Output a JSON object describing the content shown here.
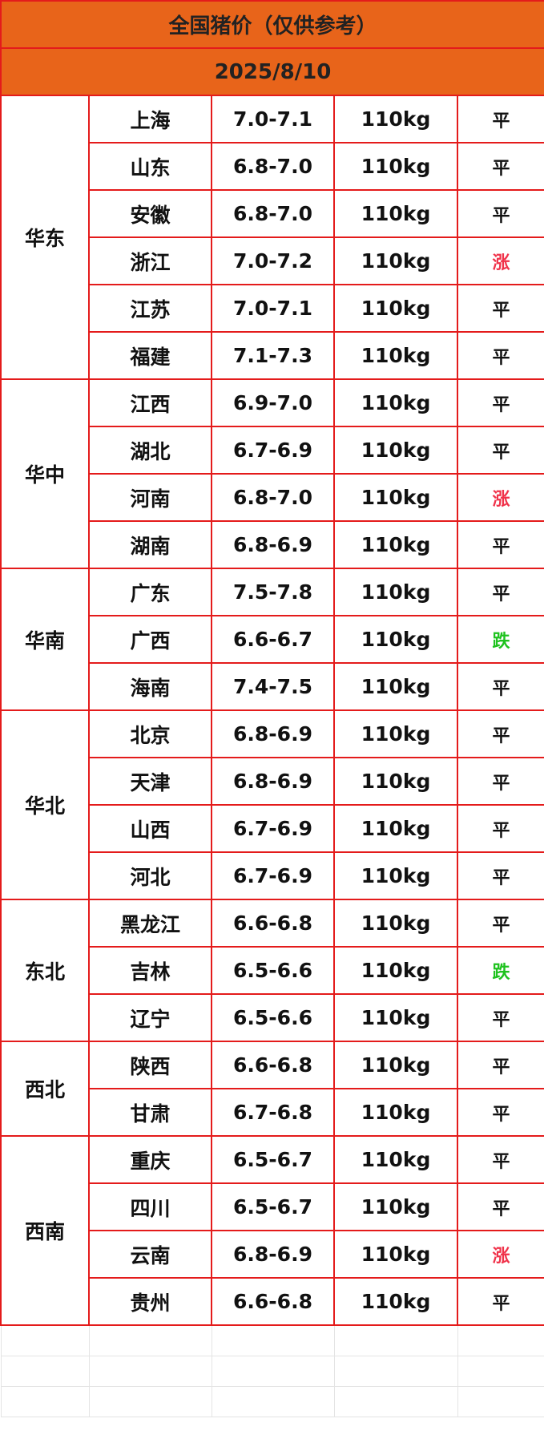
{
  "title": "全国猪价（仅供参考）",
  "date": "2025/8/10",
  "colors": {
    "header_bg": "#e8641a",
    "border": "#e41b1b",
    "rise": "#f0324a",
    "fall": "#1ec21e",
    "flat": "#111111"
  },
  "regions": [
    {
      "name": "华东",
      "rows": [
        {
          "province": "上海",
          "price": "7.0-7.1",
          "weight": "110kg",
          "trend": "平"
        },
        {
          "province": "山东",
          "price": "6.8-7.0",
          "weight": "110kg",
          "trend": "平"
        },
        {
          "province": "安徽",
          "price": "6.8-7.0",
          "weight": "110kg",
          "trend": "平"
        },
        {
          "province": "浙江",
          "price": "7.0-7.2",
          "weight": "110kg",
          "trend": "涨"
        },
        {
          "province": "江苏",
          "price": "7.0-7.1",
          "weight": "110kg",
          "trend": "平"
        },
        {
          "province": "福建",
          "price": "7.1-7.3",
          "weight": "110kg",
          "trend": "平"
        }
      ]
    },
    {
      "name": "华中",
      "rows": [
        {
          "province": "江西",
          "price": "6.9-7.0",
          "weight": "110kg",
          "trend": "平"
        },
        {
          "province": "湖北",
          "price": "6.7-6.9",
          "weight": "110kg",
          "trend": "平"
        },
        {
          "province": "河南",
          "price": "6.8-7.0",
          "weight": "110kg",
          "trend": "涨"
        },
        {
          "province": "湖南",
          "price": "6.8-6.9",
          "weight": "110kg",
          "trend": "平"
        }
      ]
    },
    {
      "name": "华南",
      "rows": [
        {
          "province": "广东",
          "price": "7.5-7.8",
          "weight": "110kg",
          "trend": "平"
        },
        {
          "province": "广西",
          "price": "6.6-6.7",
          "weight": "110kg",
          "trend": "跌"
        },
        {
          "province": "海南",
          "price": "7.4-7.5",
          "weight": "110kg",
          "trend": "平"
        }
      ]
    },
    {
      "name": "华北",
      "rows": [
        {
          "province": "北京",
          "price": "6.8-6.9",
          "weight": "110kg",
          "trend": "平"
        },
        {
          "province": "天津",
          "price": "6.8-6.9",
          "weight": "110kg",
          "trend": "平"
        },
        {
          "province": "山西",
          "price": "6.7-6.9",
          "weight": "110kg",
          "trend": "平"
        },
        {
          "province": "河北",
          "price": "6.7-6.9",
          "weight": "110kg",
          "trend": "平"
        }
      ]
    },
    {
      "name": "东北",
      "rows": [
        {
          "province": "黑龙江",
          "price": "6.6-6.8",
          "weight": "110kg",
          "trend": "平"
        },
        {
          "province": "吉林",
          "price": "6.5-6.6",
          "weight": "110kg",
          "trend": "跌"
        },
        {
          "province": "辽宁",
          "price": "6.5-6.6",
          "weight": "110kg",
          "trend": "平"
        }
      ]
    },
    {
      "name": "西北",
      "rows": [
        {
          "province": "陕西",
          "price": "6.6-6.8",
          "weight": "110kg",
          "trend": "平"
        },
        {
          "province": "甘肃",
          "price": "6.7-6.8",
          "weight": "110kg",
          "trend": "平"
        }
      ]
    },
    {
      "name": "西南",
      "rows": [
        {
          "province": "重庆",
          "price": "6.5-6.7",
          "weight": "110kg",
          "trend": "平"
        },
        {
          "province": "四川",
          "price": "6.5-6.7",
          "weight": "110kg",
          "trend": "平"
        },
        {
          "province": "云南",
          "price": "6.8-6.9",
          "weight": "110kg",
          "trend": "涨"
        },
        {
          "province": "贵州",
          "price": "6.6-6.8",
          "weight": "110kg",
          "trend": "平"
        }
      ]
    }
  ]
}
